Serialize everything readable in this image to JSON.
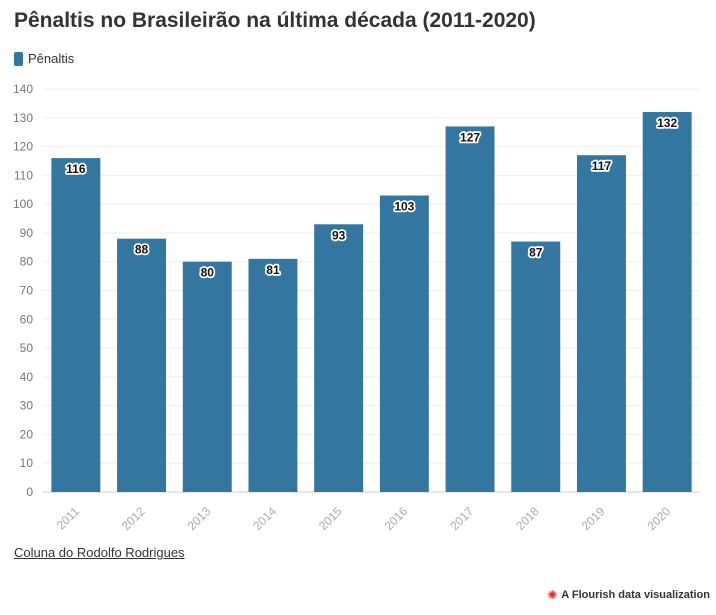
{
  "header": {
    "title": "Pênaltis no Brasileirão na última década (2011-2020)"
  },
  "legend": {
    "label": "Pênaltis"
  },
  "colors": {
    "bar": "#33769f",
    "grid": "#eeeeee",
    "tick_text": "#999999",
    "label_text": "#111111"
  },
  "chart_data": {
    "type": "bar",
    "title": "Pênaltis no Brasileirão na última década (2011-2020)",
    "categories": [
      "2011",
      "2012",
      "2013",
      "2014",
      "2015",
      "2016",
      "2017",
      "2018",
      "2019",
      "2020"
    ],
    "series": [
      {
        "name": "Pênaltis",
        "values": [
          116,
          88,
          80,
          81,
          93,
          103,
          127,
          87,
          117,
          132
        ]
      }
    ],
    "ylim": [
      0,
      140
    ],
    "yticks": [
      0,
      10,
      20,
      30,
      40,
      50,
      60,
      70,
      80,
      90,
      100,
      110,
      120,
      130,
      140
    ],
    "grid": true,
    "legend_position": "top-left",
    "data_labels": true
  },
  "footer": {
    "source": "Coluna do Rodolfo Rodrigues",
    "credit": "A Flourish data visualization",
    "credit_icon": "flourish-logo-icon"
  }
}
